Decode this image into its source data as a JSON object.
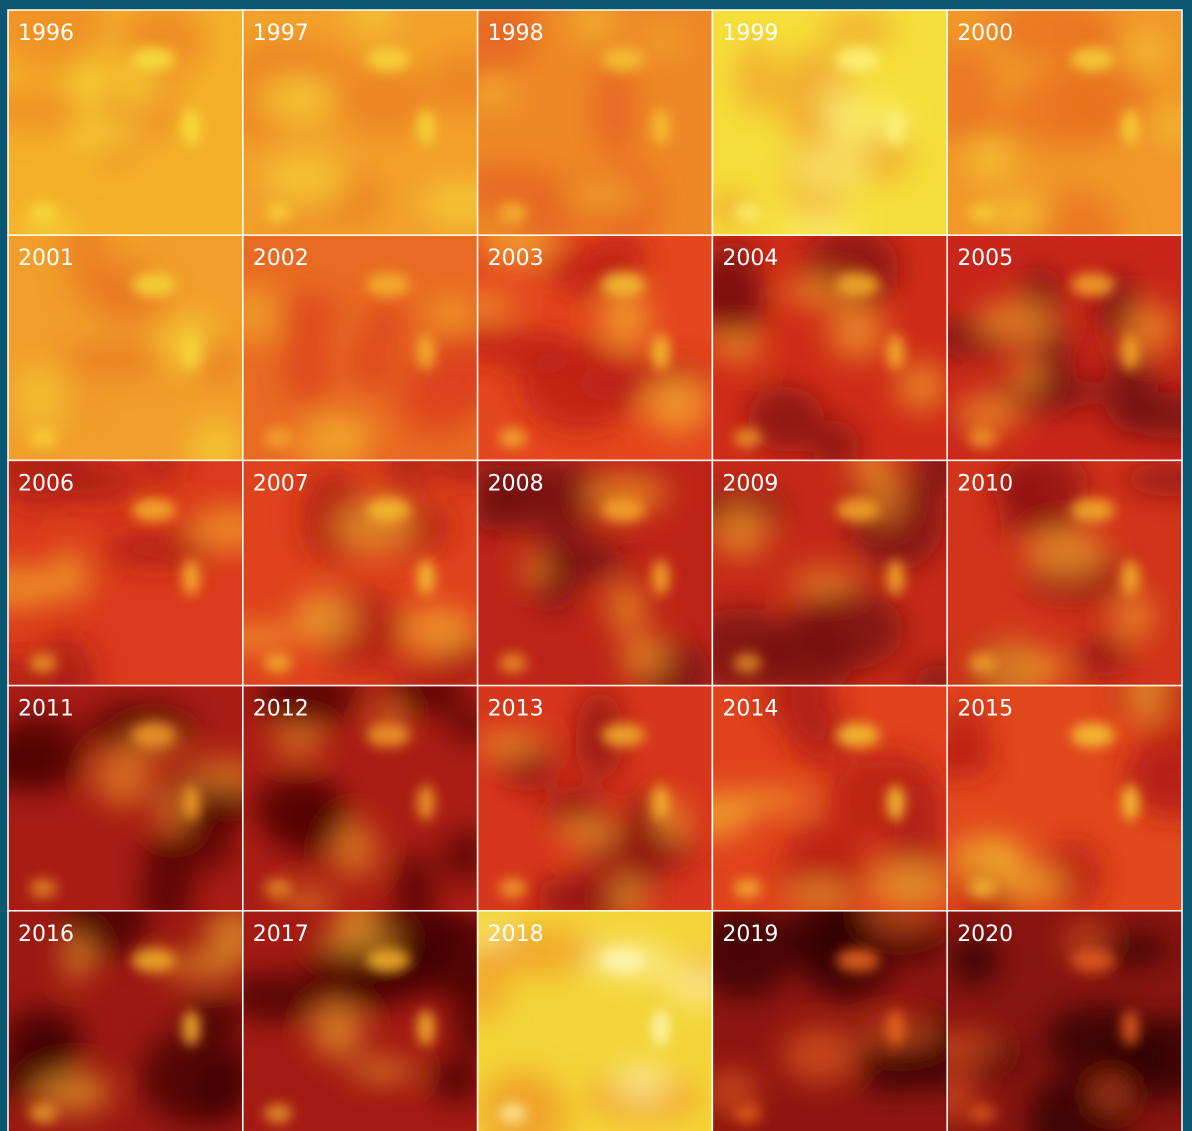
{
  "panels": [
    "1996",
    "1997",
    "1998",
    "1999",
    "2000",
    "2001",
    "2002",
    "2003",
    "2004",
    "2005",
    "2006",
    "2007",
    "2008",
    "2009",
    "2010",
    "2011",
    "2012",
    "2013",
    "2014",
    "2015",
    "2016",
    "2017",
    "2018",
    "2019",
    "2020"
  ]
}
